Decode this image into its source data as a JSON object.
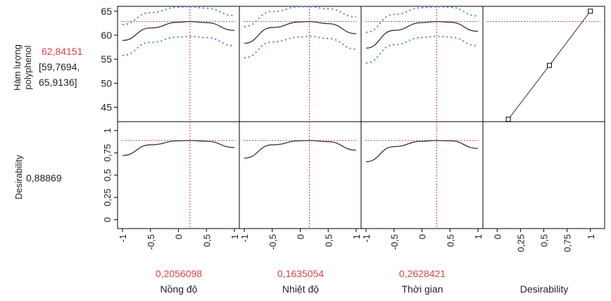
{
  "colors": {
    "prediction": "#333333",
    "ci": "#4a86e8",
    "crosshair": "#e0404a",
    "value_text": "#e0404a",
    "text": "#222222",
    "frame": "#000000"
  },
  "rows": [
    {
      "label_lines": [
        "Hàm lượng",
        "polyphenol"
      ],
      "value": "62,84151",
      "interval_lines": [
        "[59,7694,",
        "65,9136]"
      ]
    },
    {
      "label_lines": [
        "Desirability"
      ],
      "value": "0,88869",
      "interval_lines": []
    }
  ],
  "factors": [
    {
      "name": "Nồng độ",
      "current_value": "0,2056098"
    },
    {
      "name": "Nhiệt độ",
      "current_value": "0,1635054"
    },
    {
      "name": "Thời gian",
      "current_value": "0,2628421"
    },
    {
      "name": "Desirability",
      "current_value": ""
    }
  ],
  "chart_data": {
    "type": "line",
    "title": "",
    "current_response": 62.84151,
    "current_desirability": 0.88869,
    "factor_current": [
      0.2056098,
      0.1635054,
      0.2628421
    ],
    "x_ticks": [
      "-1",
      "-0,5",
      "0",
      "0,5",
      "1"
    ],
    "xlim": [
      -1,
      1
    ],
    "desirability_x_ticks": [
      "0",
      "0,25",
      "0,5",
      "0,75",
      "1"
    ],
    "y1_ticks": [
      "45",
      "50",
      "55",
      "60",
      "65"
    ],
    "y1lim": [
      42,
      66
    ],
    "y2_ticks": [
      "0",
      "0,25",
      "0,5",
      "0,75",
      "1"
    ],
    "y2lim": [
      -0.1,
      1.1
    ],
    "series": [
      {
        "factor": "Nồng độ",
        "x": [
          -1,
          -0.5,
          0,
          0.2056,
          0.5,
          1
        ],
        "prediction": [
          58.9,
          61.5,
          62.7,
          62.84,
          62.6,
          61.0
        ],
        "ci_lower": [
          55.8,
          58.5,
          59.6,
          59.77,
          59.5,
          57.8
        ],
        "ci_upper": [
          62.2,
          64.7,
          65.8,
          65.91,
          65.6,
          64.1
        ],
        "desirability": [
          0.72,
          0.84,
          0.885,
          0.8887,
          0.88,
          0.81
        ]
      },
      {
        "factor": "Nhiệt độ",
        "x": [
          -1,
          -0.5,
          0,
          0.1635,
          0.5,
          1
        ],
        "prediction": [
          58.3,
          61.6,
          62.75,
          62.84,
          62.4,
          60.3
        ],
        "ci_lower": [
          55.3,
          58.6,
          59.6,
          59.77,
          59.3,
          57.1
        ],
        "ci_upper": [
          61.8,
          64.9,
          65.9,
          65.91,
          65.5,
          63.8
        ],
        "desirability": [
          0.69,
          0.84,
          0.885,
          0.8887,
          0.875,
          0.78
        ]
      },
      {
        "factor": "Thời gian",
        "x": [
          -1,
          -0.5,
          0,
          0.2628,
          0.5,
          1
        ],
        "prediction": [
          57.3,
          61.0,
          62.6,
          62.84,
          62.7,
          60.8
        ],
        "ci_lower": [
          54.2,
          58.0,
          59.5,
          59.77,
          59.6,
          57.8
        ],
        "ci_upper": [
          60.6,
          64.3,
          65.7,
          65.91,
          65.8,
          64.0
        ],
        "desirability": [
          0.65,
          0.82,
          0.88,
          0.8887,
          0.885,
          0.8
        ]
      },
      {
        "name": "Desirability",
        "x": [
          0.12,
          0.56,
          1
        ],
        "y": [
          42.5,
          53.7,
          65
        ]
      }
    ]
  }
}
